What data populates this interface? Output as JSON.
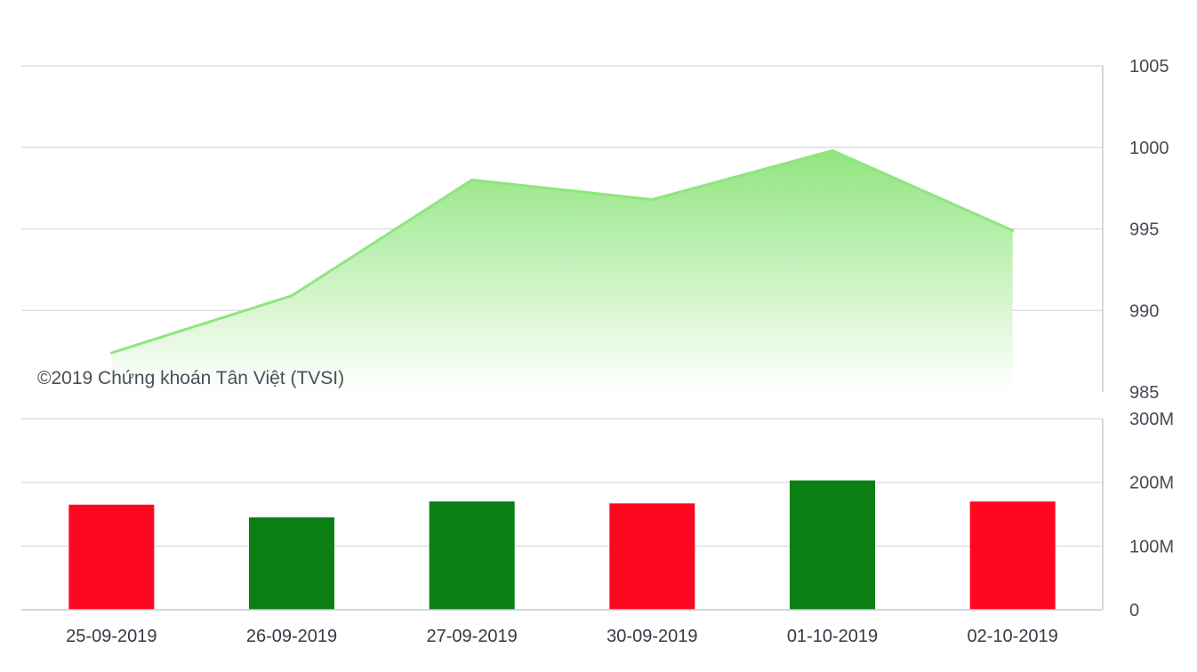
{
  "credit": "©2019 Chứng khoán Tân Việt (TVSI)",
  "chart_data": [
    {
      "type": "area",
      "categories": [
        "25-09-2019",
        "26-09-2019",
        "27-09-2019",
        "30-09-2019",
        "01-10-2019",
        "02-10-2019"
      ],
      "values": [
        987.4,
        990.9,
        998.0,
        996.8,
        999.8,
        994.9
      ],
      "ylim": [
        985,
        1005
      ],
      "yticks": [
        "985",
        "990",
        "995",
        "1000",
        "1005"
      ],
      "ytick_values": [
        985,
        990,
        995,
        1000,
        1005
      ],
      "y_axis_side": "right",
      "grid": true,
      "colors": {
        "line": "#90e57e",
        "fill_top": "#90e57e",
        "fill_bottom": "#ffffff"
      }
    },
    {
      "type": "bar",
      "categories": [
        "25-09-2019",
        "26-09-2019",
        "27-09-2019",
        "30-09-2019",
        "01-10-2019",
        "02-10-2019"
      ],
      "values": [
        165000000,
        145000000,
        170000000,
        167000000,
        203000000,
        170000000
      ],
      "direction": [
        "down",
        "up",
        "up",
        "down",
        "up",
        "down"
      ],
      "ylim": [
        0,
        300000000
      ],
      "yticks": [
        "0",
        "100M",
        "200M",
        "300M"
      ],
      "ytick_values": [
        0,
        100000000,
        200000000,
        300000000
      ],
      "y_axis_side": "right",
      "grid": true,
      "colors": {
        "up": "#0b7e14",
        "down": "#fd0820"
      }
    }
  ]
}
